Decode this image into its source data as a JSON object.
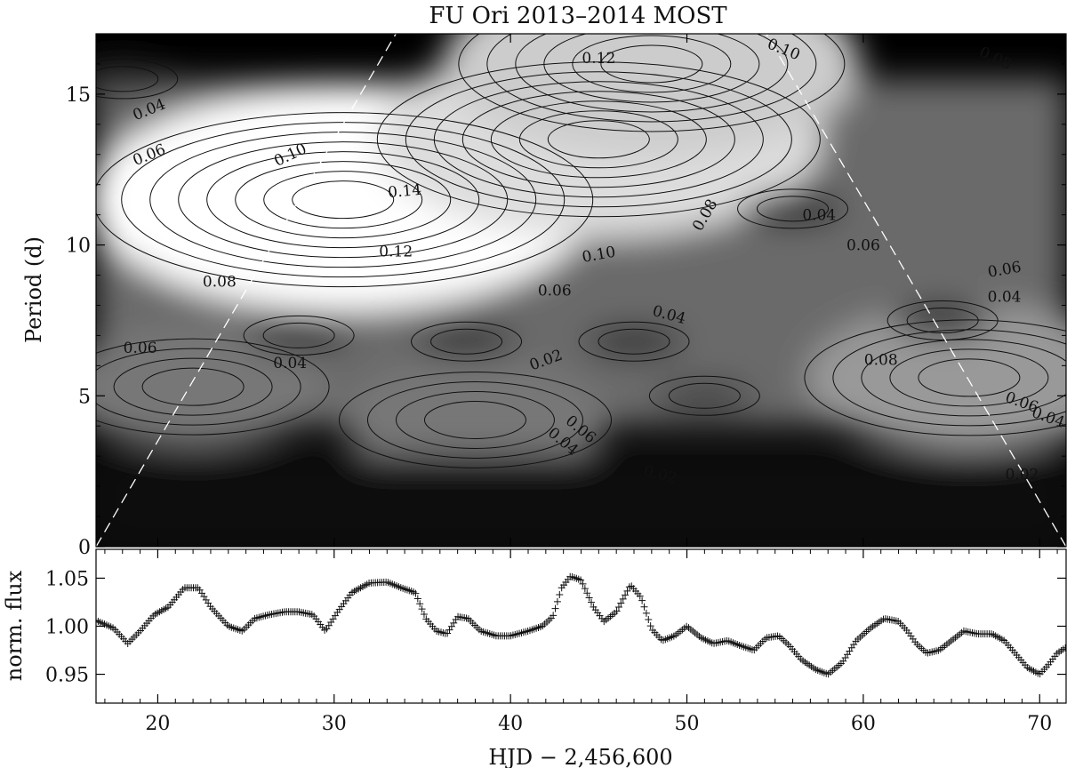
{
  "title": "FU Ori 2013–2014 MOST",
  "chart_data": [
    {
      "type": "heatmap",
      "subtype": "wavelet power contour map",
      "colormap": "grayscale, black = low power, white = high power",
      "title": "FU Ori 2013–2014 MOST",
      "xlabel": "",
      "ylabel": "Period (d)",
      "xlim": [
        16.5,
        71.5
      ],
      "ylim": [
        0,
        17
      ],
      "yticks": [
        0,
        5,
        10,
        15
      ],
      "cone_of_influence": {
        "style": "white dashed",
        "left": [
          [
            16.5,
            0
          ],
          [
            33.5,
            17
          ]
        ],
        "right": [
          [
            71.5,
            0
          ],
          [
            54.5,
            17
          ]
        ]
      },
      "contour_levels": [
        0.02,
        0.04,
        0.06,
        0.08,
        0.1,
        0.12,
        0.14
      ],
      "peaks": [
        {
          "x": 30.5,
          "y": 11.5,
          "power": 0.15
        },
        {
          "x": 45,
          "y": 13.5,
          "power": 0.13
        },
        {
          "x": 66,
          "y": 5.6,
          "power": 0.09
        },
        {
          "x": 22,
          "y": 5.3,
          "power": 0.07
        },
        {
          "x": 38,
          "y": 4.2,
          "power": 0.07
        },
        {
          "x": 48,
          "y": 16,
          "power": 0.12
        }
      ],
      "minima": [
        {
          "x": 56,
          "y": 11.2,
          "power": 0.02
        },
        {
          "x": 64.5,
          "y": 7.5,
          "power": 0.02
        },
        {
          "x": 28,
          "y": 7.0,
          "power": 0.03
        },
        {
          "x": 37.5,
          "y": 6.8,
          "power": 0.03
        },
        {
          "x": 47,
          "y": 6.8,
          "power": 0.03
        },
        {
          "x": 51,
          "y": 5.0,
          "power": 0.04
        },
        {
          "x": 18,
          "y": 15.5,
          "power": 0.03
        }
      ],
      "contour_labels": [
        {
          "text": "0.04",
          "x": 19.5,
          "y": 14.5,
          "angle": -22
        },
        {
          "text": "0.06",
          "x": 19.5,
          "y": 13.0,
          "angle": -22
        },
        {
          "text": "0.10",
          "x": 27.5,
          "y": 13.0,
          "angle": -25
        },
        {
          "text": "0.14",
          "x": 34.0,
          "y": 11.8,
          "angle": -5
        },
        {
          "text": "0.12",
          "x": 45.0,
          "y": 16.2,
          "angle": 0
        },
        {
          "text": "0.12",
          "x": 33.5,
          "y": 9.8,
          "angle": 0
        },
        {
          "text": "0.10",
          "x": 55.5,
          "y": 16.5,
          "angle": 22
        },
        {
          "text": "0.08",
          "x": 67.5,
          "y": 16.2,
          "angle": 25
        },
        {
          "text": "0.08",
          "x": 51.0,
          "y": 11.0,
          "angle": -60
        },
        {
          "text": "0.10",
          "x": 45.0,
          "y": 9.7,
          "angle": -10
        },
        {
          "text": "0.08",
          "x": 23.5,
          "y": 8.8,
          "angle": 0
        },
        {
          "text": "0.06",
          "x": 42.5,
          "y": 8.5,
          "angle": 0
        },
        {
          "text": "0.04",
          "x": 57.5,
          "y": 11.0,
          "angle": 0
        },
        {
          "text": "0.06",
          "x": 60.0,
          "y": 10.0,
          "angle": 0
        },
        {
          "text": "0.06",
          "x": 68.0,
          "y": 9.2,
          "angle": -10
        },
        {
          "text": "0.04",
          "x": 68.0,
          "y": 8.3,
          "angle": 0
        },
        {
          "text": "0.04",
          "x": 49.0,
          "y": 7.7,
          "angle": 15
        },
        {
          "text": "0.06",
          "x": 19.0,
          "y": 6.6,
          "angle": 0
        },
        {
          "text": "0.04",
          "x": 27.5,
          "y": 6.1,
          "angle": 0
        },
        {
          "text": "0.02",
          "x": 42.0,
          "y": 6.2,
          "angle": -20
        },
        {
          "text": "0.08",
          "x": 61.0,
          "y": 6.2,
          "angle": 0
        },
        {
          "text": "0.06",
          "x": 44.0,
          "y": 3.9,
          "angle": 40
        },
        {
          "text": "0.04",
          "x": 43.0,
          "y": 3.5,
          "angle": 40
        },
        {
          "text": "0.02",
          "x": 48.5,
          "y": 2.4,
          "angle": 15
        },
        {
          "text": "0.06",
          "x": 69.0,
          "y": 4.8,
          "angle": 20
        },
        {
          "text": "0.04",
          "x": 70.5,
          "y": 4.3,
          "angle": 20
        },
        {
          "text": "0.02",
          "x": 69.0,
          "y": 2.4,
          "angle": 0
        }
      ]
    },
    {
      "type": "scatter",
      "marker": "+",
      "title": "",
      "xlabel": "HJD − 2,456,600",
      "ylabel": "norm. flux",
      "xlim": [
        16.5,
        71.5
      ],
      "ylim": [
        0.92,
        1.08
      ],
      "xticks": [
        20,
        30,
        40,
        50,
        60,
        70
      ],
      "yticks": [
        0.95,
        1.0,
        1.05
      ],
      "keypoints": [
        [
          16.5,
          1.006
        ],
        [
          17.5,
          0.998
        ],
        [
          18.3,
          0.982
        ],
        [
          19.0,
          0.995
        ],
        [
          19.8,
          1.012
        ],
        [
          20.6,
          1.02
        ],
        [
          21.5,
          1.04
        ],
        [
          22.3,
          1.04
        ],
        [
          23.0,
          1.02
        ],
        [
          24.0,
          1.0
        ],
        [
          24.8,
          0.995
        ],
        [
          25.5,
          1.008
        ],
        [
          26.3,
          1.012
        ],
        [
          27.2,
          1.015
        ],
        [
          28.0,
          1.015
        ],
        [
          28.8,
          1.012
        ],
        [
          29.5,
          0.995
        ],
        [
          30.2,
          1.015
        ],
        [
          31.0,
          1.035
        ],
        [
          32.0,
          1.045
        ],
        [
          33.0,
          1.046
        ],
        [
          33.8,
          1.04
        ],
        [
          34.6,
          1.035
        ],
        [
          35.2,
          1.008
        ],
        [
          35.8,
          0.995
        ],
        [
          36.4,
          0.992
        ],
        [
          37.0,
          1.01
        ],
        [
          37.6,
          1.008
        ],
        [
          38.3,
          0.995
        ],
        [
          39.2,
          0.99
        ],
        [
          40.0,
          0.99
        ],
        [
          41.0,
          0.995
        ],
        [
          41.8,
          1.0
        ],
        [
          42.4,
          1.01
        ],
        [
          42.9,
          1.04
        ],
        [
          43.4,
          1.052
        ],
        [
          44.0,
          1.048
        ],
        [
          44.7,
          1.02
        ],
        [
          45.3,
          1.005
        ],
        [
          46.0,
          1.015
        ],
        [
          46.8,
          1.043
        ],
        [
          47.4,
          1.03
        ],
        [
          48.0,
          0.997
        ],
        [
          48.6,
          0.985
        ],
        [
          49.3,
          0.99
        ],
        [
          50.0,
          1.0
        ],
        [
          50.8,
          0.988
        ],
        [
          51.5,
          0.982
        ],
        [
          52.3,
          0.985
        ],
        [
          53.0,
          0.98
        ],
        [
          53.8,
          0.975
        ],
        [
          54.5,
          0.988
        ],
        [
          55.2,
          0.99
        ],
        [
          55.8,
          0.98
        ],
        [
          56.5,
          0.965
        ],
        [
          57.3,
          0.955
        ],
        [
          58.0,
          0.95
        ],
        [
          58.8,
          0.962
        ],
        [
          59.6,
          0.985
        ],
        [
          60.4,
          0.998
        ],
        [
          61.2,
          1.008
        ],
        [
          62.0,
          1.005
        ],
        [
          62.5,
          0.995
        ],
        [
          63.0,
          0.982
        ],
        [
          63.6,
          0.972
        ],
        [
          64.3,
          0.975
        ],
        [
          65.0,
          0.985
        ],
        [
          65.7,
          0.995
        ],
        [
          66.5,
          0.992
        ],
        [
          67.3,
          0.992
        ],
        [
          68.0,
          0.985
        ],
        [
          68.7,
          0.97
        ],
        [
          69.3,
          0.957
        ],
        [
          70.0,
          0.95
        ],
        [
          70.5,
          0.96
        ],
        [
          71.0,
          0.972
        ],
        [
          71.5,
          0.978
        ]
      ]
    }
  ]
}
